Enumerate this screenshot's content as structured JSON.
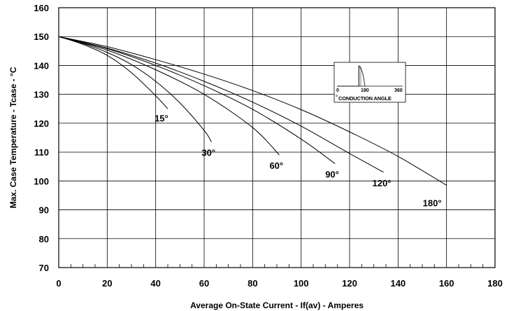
{
  "chart_data": {
    "type": "line",
    "xlabel": "Average On-State Current - If(av) - Amperes",
    "ylabel": "Max. Case Temperature - Tcase - °C",
    "xlim": [
      0,
      180
    ],
    "ylim": [
      70,
      160
    ],
    "x_ticks": [
      "0",
      "20",
      "40",
      "60",
      "80",
      "100",
      "120",
      "140",
      "160",
      "180"
    ],
    "y_ticks": [
      "70",
      "80",
      "90",
      "100",
      "110",
      "120",
      "130",
      "140",
      "150",
      "160"
    ],
    "grid": true,
    "series": [
      {
        "name": "15°",
        "x": [
          0,
          10,
          20,
          30,
          40,
          45
        ],
        "y": [
          150,
          147.3,
          143.5,
          137.5,
          129.5,
          125
        ]
      },
      {
        "name": "30°",
        "x": [
          0,
          10,
          20,
          30,
          40,
          50,
          60,
          63
        ],
        "y": [
          150,
          147.6,
          144.5,
          140.3,
          134.5,
          127,
          117.5,
          113.5
        ]
      },
      {
        "name": "60°",
        "x": [
          0,
          20,
          40,
          60,
          80,
          91
        ],
        "y": [
          150,
          145.3,
          138.5,
          130,
          118.5,
          109
        ]
      },
      {
        "name": "90°",
        "x": [
          0,
          20,
          40,
          60,
          80,
          100,
          114
        ],
        "y": [
          150,
          145.8,
          140,
          133,
          124.8,
          114.5,
          106
        ]
      },
      {
        "name": "120°",
        "x": [
          0,
          20,
          40,
          60,
          80,
          100,
          120,
          134
        ],
        "y": [
          150,
          146,
          140.8,
          134.5,
          127.3,
          119,
          109.5,
          103
        ]
      },
      {
        "name": "180°",
        "x": [
          0,
          20,
          40,
          60,
          80,
          100,
          120,
          140,
          160
        ],
        "y": [
          150,
          146.5,
          142,
          137,
          131.3,
          124.7,
          117,
          108.5,
          98.5
        ]
      }
    ],
    "inset": {
      "title": "CONDUCTION ANGLE",
      "ticks": [
        "0",
        "180",
        "360"
      ]
    }
  }
}
